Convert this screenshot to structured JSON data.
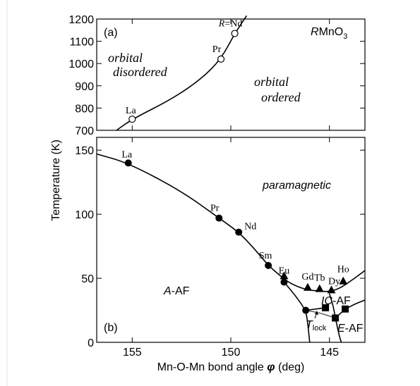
{
  "chart_data": [
    {
      "panel_label": "(a)",
      "compound": "RMnO3",
      "type": "scatter",
      "xlim": [
        156.8,
        143.2
      ],
      "ylim": [
        700,
        1200
      ],
      "x_ticks": [
        155,
        150,
        145
      ],
      "y_ticks": [
        700,
        800,
        900,
        1000,
        1100,
        1200
      ],
      "region_labels": [
        "orbital disordered",
        "orbital ordered"
      ],
      "series": [
        {
          "marker": "open-circle",
          "points": [
            {
              "x": 155.0,
              "y": 750,
              "label": "La"
            },
            {
              "x": 150.5,
              "y": 1020,
              "label": "Pr"
            },
            {
              "x": 149.8,
              "y": 1135,
              "label": "R=Nd"
            }
          ]
        }
      ],
      "boundary_curve": [
        [
          155.8,
          700
        ],
        [
          155.0,
          750
        ],
        [
          153.0,
          840
        ],
        [
          151.5,
          930
        ],
        [
          150.5,
          1020
        ],
        [
          149.8,
          1135
        ],
        [
          149.2,
          1215
        ]
      ]
    },
    {
      "panel_label": "(b)",
      "type": "scatter",
      "xlim": [
        156.8,
        143.2
      ],
      "ylim": [
        0,
        160
      ],
      "x_ticks": [
        155,
        150,
        145
      ],
      "y_ticks": [
        0,
        50,
        100,
        150
      ],
      "xlabel": "Mn-O-Mn bond angle  φ  (deg)",
      "shared_ylabel": "Temperature (K)",
      "region_labels": [
        "paramagnetic",
        "A-AF",
        "IC-AF",
        "E-AF",
        "T_lock"
      ],
      "series": [
        {
          "marker": "filled-circle",
          "points": [
            {
              "x": 155.2,
              "y": 140,
              "label": "La"
            },
            {
              "x": 150.6,
              "y": 97,
              "label": "Pr"
            },
            {
              "x": 149.6,
              "y": 86,
              "label": "Nd"
            },
            {
              "x": 148.1,
              "y": 60,
              "label": "Sm"
            },
            {
              "x": 147.3,
              "y": 47,
              "label": "Eu"
            },
            {
              "x": 146.2,
              "y": 25,
              "label": ""
            }
          ]
        },
        {
          "marker": "filled-triangle",
          "points": [
            {
              "x": 147.3,
              "y": 52,
              "label": ""
            },
            {
              "x": 146.1,
              "y": 43,
              "label": "Gd"
            },
            {
              "x": 145.5,
              "y": 42,
              "label": "Tb"
            },
            {
              "x": 144.9,
              "y": 41,
              "label": "Dy"
            },
            {
              "x": 144.3,
              "y": 48,
              "label": "Ho"
            }
          ]
        },
        {
          "marker": "filled-square",
          "points": [
            {
              "x": 145.2,
              "y": 27,
              "label": ""
            },
            {
              "x": 144.7,
              "y": 19,
              "label": ""
            },
            {
              "x": 144.2,
              "y": 26,
              "label": ""
            }
          ]
        }
      ],
      "curves": [
        {
          "style": "solid",
          "points": [
            [
              156.8,
              147
            ],
            [
              155.2,
              140
            ],
            [
              152.5,
              118
            ],
            [
              150.6,
              97
            ],
            [
              149.6,
              86
            ],
            [
              148.8,
              73
            ],
            [
              148.1,
              60
            ],
            [
              147.5,
              52
            ],
            [
              147.0,
              46
            ],
            [
              146.2,
              41
            ],
            [
              145.5,
              40
            ],
            [
              145.0,
              39.5
            ],
            [
              144.5,
              42
            ],
            [
              144.0,
              47
            ],
            [
              143.2,
              56
            ]
          ]
        },
        {
          "style": "solid",
          "points": [
            [
              147.3,
              47
            ],
            [
              146.7,
              36
            ],
            [
              146.2,
              25
            ],
            [
              146.1,
              15
            ],
            [
              146.0,
              0
            ]
          ]
        },
        {
          "style": "solid",
          "points": [
            [
              146.2,
              25
            ],
            [
              145.7,
              26
            ],
            [
              145.2,
              27
            ]
          ]
        },
        {
          "style": "solid",
          "points": [
            [
              145.0,
              38
            ],
            [
              144.8,
              28
            ],
            [
              144.7,
              19
            ],
            [
              144.5,
              5
            ],
            [
              144.4,
              0
            ]
          ]
        },
        {
          "style": "solid",
          "points": [
            [
              144.7,
              19
            ],
            [
              144.2,
              26
            ],
            [
              143.7,
              30
            ],
            [
              143.2,
              33
            ]
          ]
        },
        {
          "style": "gray",
          "points": [
            [
              146.2,
              25
            ],
            [
              145.5,
              23
            ],
            [
              144.7,
              19
            ]
          ]
        }
      ]
    }
  ],
  "labels": {
    "panel_a": "(a)",
    "panel_b": "(b)",
    "compound_italic": "R",
    "compound_rest": "MnO",
    "compound_sub": "3",
    "orbital_disordered_1": "orbital",
    "orbital_disordered_2": "disordered",
    "orbital_ordered_1": "orbital",
    "orbital_ordered_2": "ordered",
    "paramagnetic": "paramagnetic",
    "a_af_italic": "A",
    "a_af_rest": "-AF",
    "ic_af_italic": "IC",
    "ic_af_rest": "-AF",
    "e_af_italic": "E",
    "e_af_rest": "-AF",
    "tlock_main": "T",
    "tlock_sub": "lock",
    "xlabel_main": "Mn-O-Mn bond angle ",
    "xlabel_phi": "φ",
    "xlabel_unit": "  (deg)",
    "ylabel": "Temperature (K)"
  }
}
